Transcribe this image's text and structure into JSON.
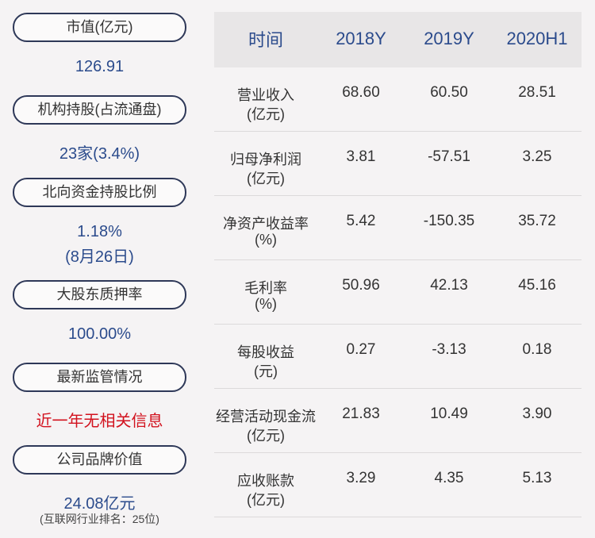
{
  "left": [
    {
      "label": "市值(亿元)",
      "value": [
        "126.91"
      ]
    },
    {
      "label": "机构持股(占流通盘)",
      "value": [
        "23家(3.4%)"
      ]
    },
    {
      "label": "北向资金持股比例",
      "value": [
        "1.18%",
        "(8月26日)"
      ]
    },
    {
      "label": "大股东质押率",
      "value": [
        "100.00%"
      ]
    },
    {
      "label": "最新监管情况",
      "value": [
        "近一年无相关信息"
      ]
    },
    {
      "label": "公司品牌价值",
      "value": [
        "24.08亿元"
      ],
      "note": "(互联网行业排名：25位)"
    }
  ],
  "table": {
    "header": [
      "时间",
      "2018Y",
      "2019Y",
      "2020H1"
    ],
    "rows": [
      {
        "label": [
          "营业收入",
          "(亿元)"
        ],
        "values": [
          "68.60",
          "60.50",
          "28.51"
        ]
      },
      {
        "label": [
          "归母净利润",
          "(亿元)"
        ],
        "values": [
          "3.81",
          "-57.51",
          "3.25"
        ]
      },
      {
        "label": [
          "净资产收益率",
          "(%)"
        ],
        "values": [
          "5.42",
          "-150.35",
          "35.72"
        ]
      },
      {
        "label": [
          "毛利率",
          "(%)"
        ],
        "values": [
          "50.96",
          "42.13",
          "45.16"
        ]
      },
      {
        "label": [
          "每股收益",
          "(元)"
        ],
        "values": [
          "0.27",
          "-3.13",
          "0.18"
        ]
      },
      {
        "label": [
          "经营活动现金流",
          "(亿元)"
        ],
        "values": [
          "21.83",
          "10.49",
          "3.90"
        ]
      },
      {
        "label": [
          "应收账款",
          "(亿元)"
        ],
        "values": [
          "3.29",
          "4.35",
          "5.13"
        ]
      }
    ]
  }
}
